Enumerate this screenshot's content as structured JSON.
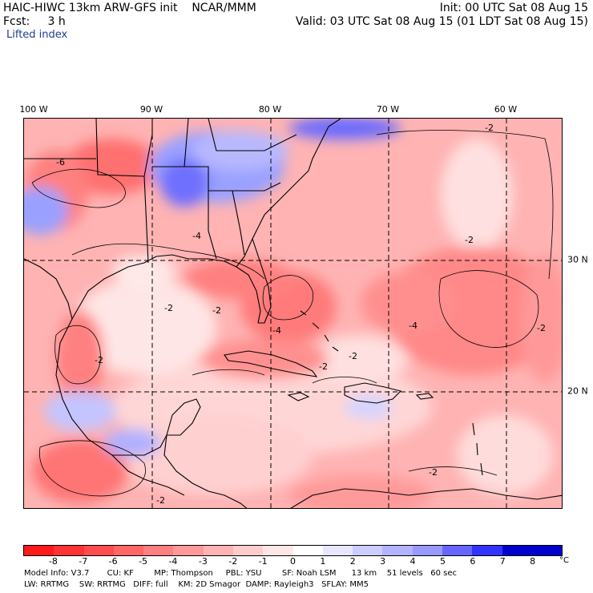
{
  "header": {
    "model_title": "HAIC-HIWC 13km ARW-GFS init",
    "org": "NCAR/MMM",
    "forecast_label": "Fcst:",
    "forecast_hours": "3 h",
    "field": "Lifted index",
    "init": "Init: 00 UTC Sat 08 Aug 15",
    "valid": "Valid: 03 UTC Sat 08 Aug 15 (01 LDT Sat 08 Aug 15)"
  },
  "map": {
    "lon_labels": [
      "100 W",
      "90 W",
      "80 W",
      "70 W",
      "60 W"
    ],
    "lat_labels": [
      "30 N",
      "20 N"
    ],
    "contour_labels": [
      "-2",
      "-4",
      "-6"
    ]
  },
  "colorbar": {
    "ticks": [
      "-8",
      "-7",
      "-6",
      "-5",
      "-4",
      "-3",
      "-2",
      "-1",
      "0",
      "1",
      "2",
      "3",
      "4",
      "5",
      "6",
      "7",
      "8"
    ],
    "unit": "°C",
    "colors": [
      "#ff1a1a",
      "#ff3333",
      "#ff4d4d",
      "#ff6666",
      "#ff8080",
      "#ff9999",
      "#ffb3b3",
      "#ffcccc",
      "#ffe6e6",
      "#ffffff",
      "#e6e6ff",
      "#ccccff",
      "#b3b3ff",
      "#9999ff",
      "#6666ff",
      "#3333ff",
      "#0000cc",
      "#0000cc"
    ]
  },
  "footer": {
    "line1": "Model Info: V3.7       CU: KF        MP: Thompson     PBL: YSU        SF: Noah LSM      13 km    51 levels   60 sec",
    "line2": "LW: RRTMG    SW: RRTMG   DIFF: full    KM: 2D Smagor  DAMP: Rayleigh3   SFLAY: MM5"
  }
}
